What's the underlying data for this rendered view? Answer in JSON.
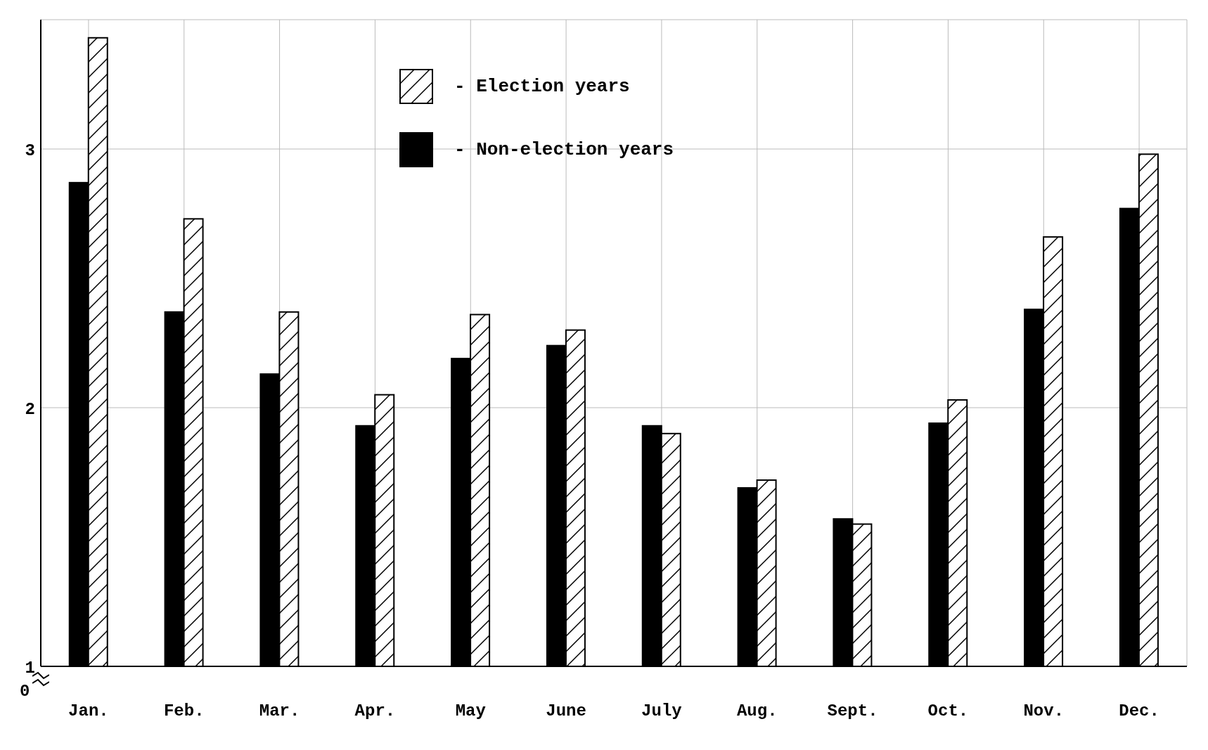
{
  "chart_data": {
    "type": "bar",
    "categories": [
      "Jan.",
      "Feb.",
      "Mar.",
      "Apr.",
      "May",
      "June",
      "July",
      "Aug.",
      "Sept.",
      "Oct.",
      "Nov.",
      "Dec."
    ],
    "series": [
      {
        "name": "- Non-election years",
        "color": "#000000",
        "values": [
          2.87,
          2.37,
          2.13,
          1.93,
          2.19,
          2.24,
          1.93,
          1.69,
          1.57,
          1.94,
          2.38,
          2.77
        ]
      },
      {
        "name": "- Election years",
        "color": "#ffffff",
        "values": [
          3.43,
          2.73,
          2.37,
          2.05,
          2.36,
          2.3,
          1.9,
          1.72,
          1.55,
          2.03,
          2.66,
          2.98
        ]
      }
    ],
    "ylim": [
      1,
      3.5
    ],
    "yticks": [
      1,
      2,
      3
    ],
    "grid": true,
    "legend": "top",
    "annotations": [
      "0"
    ]
  }
}
